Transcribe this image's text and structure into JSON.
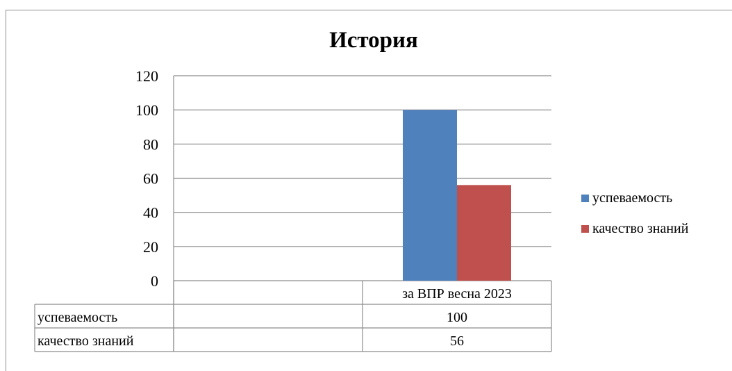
{
  "chart_data": {
    "type": "bar",
    "title": "История",
    "categories": [
      "",
      "за ВПР весна 2023"
    ],
    "series": [
      {
        "name": "успеваемость",
        "values": [
          null,
          100
        ],
        "color": "#4F81BD"
      },
      {
        "name": "качество знаний",
        "values": [
          null,
          56
        ],
        "color": "#C0504D"
      }
    ],
    "ylim": [
      0,
      120
    ],
    "yticks": [
      0,
      20,
      40,
      60,
      80,
      100,
      120
    ],
    "grid": true,
    "legend": "right",
    "data_table": {
      "rows": [
        {
          "label": "успеваемость",
          "cells": [
            "",
            "100"
          ]
        },
        {
          "label": "качество знаний",
          "cells": [
            "",
            "56"
          ]
        }
      ]
    }
  }
}
